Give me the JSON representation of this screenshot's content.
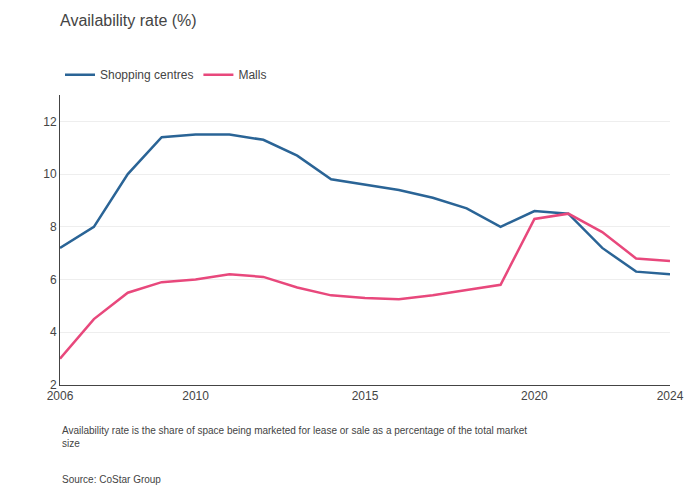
{
  "chart_data": {
    "type": "line",
    "title": "Availability rate (%)",
    "x": [
      2006,
      2007,
      2008,
      2009,
      2010,
      2011,
      2012,
      2013,
      2014,
      2015,
      2016,
      2017,
      2018,
      2019,
      2020,
      2021,
      2022,
      2023,
      2024
    ],
    "series": [
      {
        "name": "Shopping centres",
        "color": "#2a6496",
        "values": [
          7.2,
          8.0,
          10.0,
          11.4,
          11.5,
          11.5,
          11.3,
          10.7,
          9.8,
          9.6,
          9.4,
          9.1,
          8.7,
          8.0,
          8.6,
          8.5,
          7.2,
          6.3,
          6.2
        ]
      },
      {
        "name": "Malls",
        "color": "#e8487c",
        "values": [
          3.0,
          4.5,
          5.5,
          5.9,
          6.0,
          6.2,
          6.1,
          5.7,
          5.4,
          5.3,
          5.25,
          5.4,
          5.6,
          5.8,
          8.3,
          8.5,
          7.8,
          6.8,
          6.7
        ]
      }
    ],
    "xlim": [
      2006,
      2024
    ],
    "xticks": [
      2006,
      2010,
      2015,
      2020,
      2024
    ],
    "ylim": [
      2,
      13
    ],
    "yticks": [
      2,
      4,
      6,
      8,
      10,
      12
    ],
    "grid": "y",
    "legend": "top left",
    "annotations": [
      "Availability rate is the share of space being marketed for lease or sale as a percentage of the total market\nsize",
      "Source: CoStar Group"
    ]
  }
}
